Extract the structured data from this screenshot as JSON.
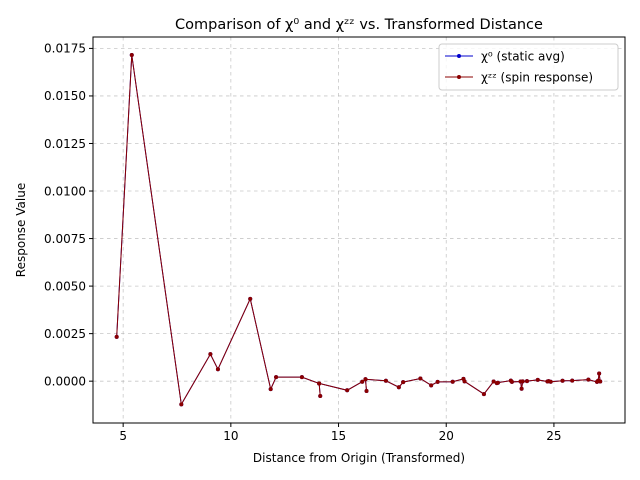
{
  "chart_data": {
    "type": "line",
    "title": "Comparison of χ⁰ and χᶻᶻ vs. Transformed Distance",
    "xlabel": "Distance from Origin (Transformed)",
    "ylabel": "Response Value",
    "xlim": [
      3.6,
      28.3
    ],
    "ylim": [
      -0.0022,
      0.0181
    ],
    "xticks": [
      5,
      10,
      15,
      20,
      25
    ],
    "xtick_labels": [
      "5",
      "10",
      "15",
      "20",
      "25"
    ],
    "yticks": [
      0.0,
      0.0025,
      0.005,
      0.0075,
      0.01,
      0.0125,
      0.015,
      0.0175
    ],
    "ytick_labels": [
      "0.0000",
      "0.0025",
      "0.0050",
      "0.0075",
      "0.0100",
      "0.0125",
      "0.0150",
      "0.0175"
    ],
    "grid": true,
    "legend_position": "top-right",
    "series": [
      {
        "name": "χ⁰ (static avg)",
        "color": "#0000cc",
        "points": [
          [
            4.7,
            0.00233
          ],
          [
            5.4,
            0.01715
          ],
          [
            7.7,
            -0.00122
          ],
          [
            9.05,
            0.00142
          ],
          [
            9.4,
            0.00063
          ],
          [
            10.9,
            0.00433
          ],
          [
            11.85,
            -0.00042
          ],
          [
            12.1,
            0.00021
          ],
          [
            13.3,
            0.00021
          ],
          [
            14.1,
            -0.00012
          ],
          [
            14.15,
            -0.00078
          ],
          [
            14.1,
            -0.00012
          ],
          [
            15.4,
            -0.00048
          ],
          [
            16.1,
            -3e-05
          ],
          [
            16.25,
            0.0001
          ],
          [
            16.3,
            -0.00052
          ],
          [
            16.25,
            0.0001
          ],
          [
            17.2,
            2e-05
          ],
          [
            17.8,
            -0.00032
          ],
          [
            18.0,
            -5e-05
          ],
          [
            18.8,
            0.00014
          ],
          [
            19.3,
            -0.00022
          ],
          [
            19.6,
            -4e-05
          ],
          [
            20.3,
            -3e-05
          ],
          [
            20.8,
            0.00012
          ],
          [
            20.85,
            -1e-05
          ],
          [
            21.75,
            -0.00068
          ],
          [
            22.2,
            -2e-05
          ],
          [
            22.35,
            -0.0001
          ],
          [
            22.4,
            -8e-05
          ],
          [
            23.0,
            3e-05
          ],
          [
            23.05,
            -4e-05
          ],
          [
            23.45,
            -2e-05
          ],
          [
            23.5,
            -0.0004
          ],
          [
            23.55,
            -1e-05
          ],
          [
            23.75,
            0.0
          ],
          [
            24.25,
            7e-05
          ],
          [
            24.7,
            -2e-05
          ],
          [
            24.75,
            0.0
          ],
          [
            24.85,
            -3e-05
          ],
          [
            25.4,
            2e-05
          ],
          [
            25.85,
            3e-05
          ],
          [
            26.6,
            8e-05
          ],
          [
            27.0,
            -4e-05
          ],
          [
            27.05,
            2e-05
          ],
          [
            27.1,
            0.0004
          ],
          [
            27.15,
            -2e-05
          ]
        ]
      },
      {
        "name": "χᶻᶻ (spin response)",
        "color": "#8b0000",
        "points": [
          [
            4.7,
            0.00233
          ],
          [
            5.4,
            0.01715
          ],
          [
            7.7,
            -0.00122
          ],
          [
            9.05,
            0.00142
          ],
          [
            9.4,
            0.00063
          ],
          [
            10.9,
            0.00433
          ],
          [
            11.85,
            -0.00042
          ],
          [
            12.1,
            0.00021
          ],
          [
            13.3,
            0.00021
          ],
          [
            14.1,
            -0.00012
          ],
          [
            14.15,
            -0.00078
          ],
          [
            14.1,
            -0.00012
          ],
          [
            15.4,
            -0.00048
          ],
          [
            16.1,
            -3e-05
          ],
          [
            16.25,
            0.0001
          ],
          [
            16.3,
            -0.00052
          ],
          [
            16.25,
            0.0001
          ],
          [
            17.2,
            2e-05
          ],
          [
            17.8,
            -0.00032
          ],
          [
            18.0,
            -5e-05
          ],
          [
            18.8,
            0.00014
          ],
          [
            19.3,
            -0.00022
          ],
          [
            19.6,
            -4e-05
          ],
          [
            20.3,
            -3e-05
          ],
          [
            20.8,
            0.00012
          ],
          [
            20.85,
            -1e-05
          ],
          [
            21.75,
            -0.00068
          ],
          [
            22.2,
            -2e-05
          ],
          [
            22.35,
            -0.0001
          ],
          [
            22.4,
            -8e-05
          ],
          [
            23.0,
            3e-05
          ],
          [
            23.05,
            -4e-05
          ],
          [
            23.45,
            -2e-05
          ],
          [
            23.5,
            -0.0004
          ],
          [
            23.55,
            -1e-05
          ],
          [
            23.75,
            0.0
          ],
          [
            24.25,
            7e-05
          ],
          [
            24.7,
            -2e-05
          ],
          [
            24.75,
            0.0
          ],
          [
            24.85,
            -3e-05
          ],
          [
            25.4,
            2e-05
          ],
          [
            25.85,
            3e-05
          ],
          [
            26.6,
            8e-05
          ],
          [
            27.0,
            -4e-05
          ],
          [
            27.05,
            2e-05
          ],
          [
            27.1,
            0.0004
          ],
          [
            27.15,
            -2e-05
          ]
        ]
      }
    ]
  }
}
